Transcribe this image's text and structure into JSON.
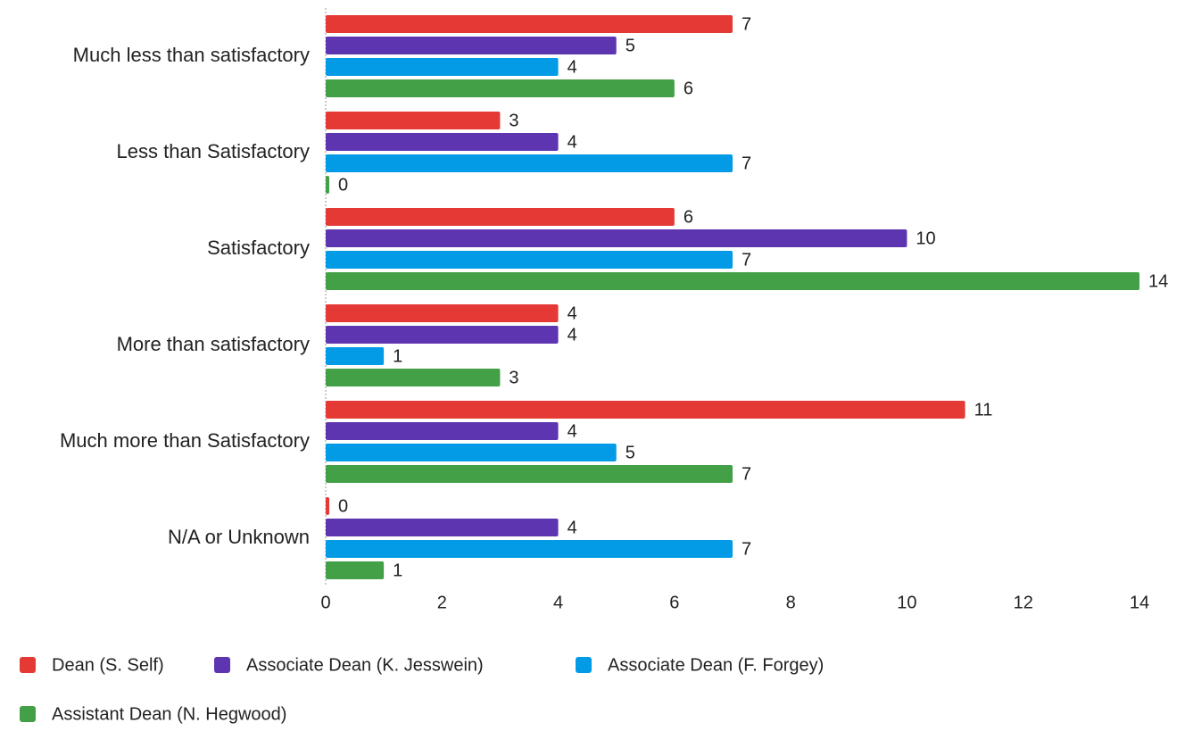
{
  "chart_data": {
    "type": "bar",
    "orientation": "horizontal",
    "categories": [
      "Much less than satisfactory",
      "Less than Satisfactory",
      "Satisfactory",
      "More than satisfactory",
      "Much more than Satisfactory",
      "N/A or Unknown"
    ],
    "series": [
      {
        "name": "Dean (S. Self)",
        "color": "#e53935",
        "values": [
          7,
          3,
          6,
          4,
          11,
          0
        ]
      },
      {
        "name": "Associate Dean (K. Jesswein)",
        "color": "#5e35b1",
        "values": [
          5,
          4,
          10,
          4,
          4,
          4
        ]
      },
      {
        "name": "Associate Dean (F. Forgey)",
        "color": "#039be5",
        "values": [
          4,
          7,
          7,
          1,
          5,
          7
        ]
      },
      {
        "name": "Assistant Dean (N. Hegwood)",
        "color": "#43a047",
        "values": [
          6,
          0,
          14,
          3,
          7,
          1
        ]
      }
    ],
    "xlim": [
      0,
      14
    ],
    "xticks": [
      0,
      2,
      4,
      6,
      8,
      10,
      12,
      14
    ],
    "legend": "bottom"
  }
}
